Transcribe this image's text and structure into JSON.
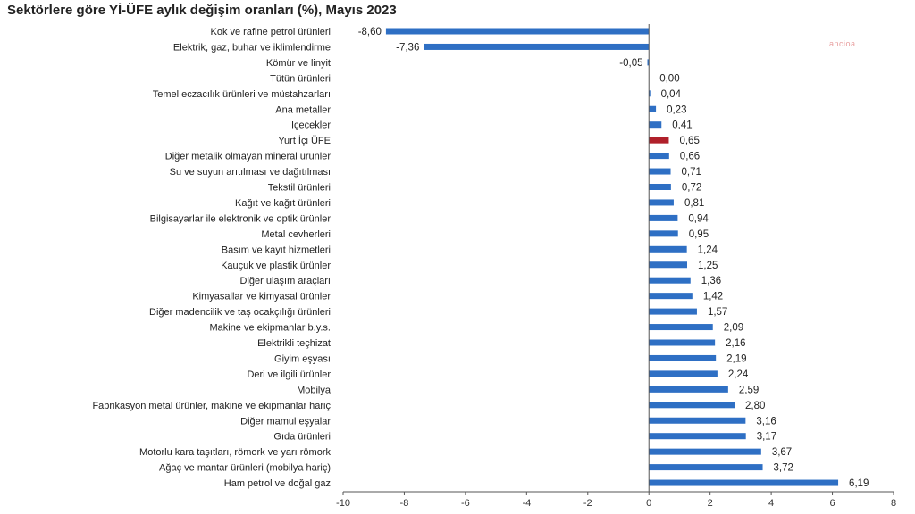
{
  "title": "Sektörlere göre Yİ-ÜFE aylık değişim oranları (%), Mayıs 2023",
  "watermark": "ancioa",
  "colors": {
    "bar": "#2e6fc4",
    "highlight": "#b0202a",
    "axis": "#555555"
  },
  "chart_data": {
    "type": "bar",
    "orientation": "horizontal",
    "title": "Sektörlere göre Yİ-ÜFE aylık değişim oranları (%), Mayıs 2023",
    "xlim": [
      -10,
      8
    ],
    "xticks": [
      -10,
      -8,
      -6,
      -4,
      -2,
      0,
      2,
      4,
      6,
      8
    ],
    "grid": false,
    "highlight_category": "Yurt İçi ÜFE",
    "categories": [
      "Kok ve rafine petrol ürünleri",
      "Elektrik, gaz, buhar ve iklimlendirme",
      "Kömür ve linyit",
      "Tütün ürünleri",
      "Temel eczacılık ürünleri ve müstahzarları",
      "Ana metaller",
      "İçecekler",
      "Yurt İçi ÜFE",
      "Diğer metalik olmayan mineral ürünler",
      "Su ve suyun arıtılması ve dağıtılması",
      "Tekstil ürünleri",
      "Kağıt ve kağıt ürünleri",
      "Bilgisayarlar ile elektronik ve optik ürünler",
      "Metal cevherleri",
      "Basım ve kayıt hizmetleri",
      "Kauçuk ve plastik ürünler",
      "Diğer ulaşım araçları",
      "Kimyasallar ve kimyasal ürünler",
      "Diğer madencilik ve taş ocakçılığı ürünleri",
      "Makine ve ekipmanlar b.y.s.",
      "Elektrikli teçhizat",
      "Giyim eşyası",
      "Deri ve ilgili ürünler",
      "Mobilya",
      "Fabrikasyon metal ürünler, makine ve ekipmanlar hariç",
      "Diğer mamul eşyalar",
      "Gıda ürünleri",
      "Motorlu kara taşıtları, römork ve yarı römork",
      "Ağaç ve mantar ürünleri (mobilya hariç)",
      "Ham petrol ve doğal gaz"
    ],
    "values": [
      -8.6,
      -7.36,
      -0.05,
      0.0,
      0.04,
      0.23,
      0.41,
      0.65,
      0.66,
      0.71,
      0.72,
      0.81,
      0.94,
      0.95,
      1.24,
      1.25,
      1.36,
      1.42,
      1.57,
      2.09,
      2.16,
      2.19,
      2.24,
      2.59,
      2.8,
      3.16,
      3.17,
      3.67,
      3.72,
      6.19
    ],
    "value_labels": [
      "-8,60",
      "-7,36",
      "-0,05",
      "0,00",
      "0,04",
      "0,23",
      "0,41",
      "0,65",
      "0,66",
      "0,71",
      "0,72",
      "0,81",
      "0,94",
      "0,95",
      "1,24",
      "1,25",
      "1,36",
      "1,42",
      "1,57",
      "2,09",
      "2,16",
      "2,19",
      "2,24",
      "2,59",
      "2,80",
      "3,16",
      "3,17",
      "3,67",
      "3,72",
      "6,19"
    ]
  }
}
